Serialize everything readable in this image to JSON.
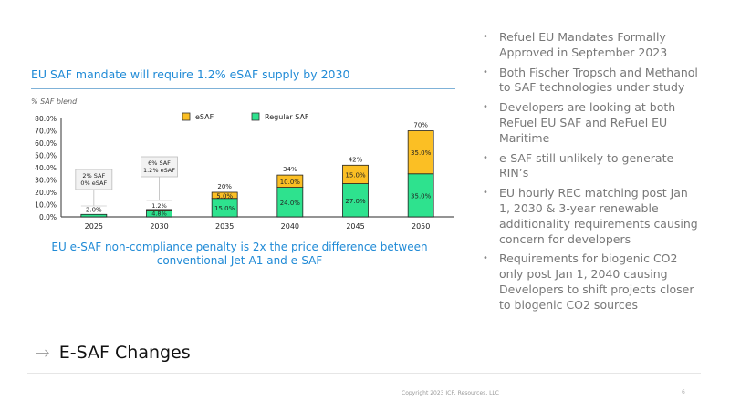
{
  "slide": {
    "chart_title": "EU SAF mandate will require 1.2% eSAF supply by 2030",
    "caption": "EU e-SAF non-compliance penalty is 2x the price difference between conventional Jet-A1 and e-SAF",
    "section_title": "E-SAF Changes",
    "section_icon": "arrow-right-icon",
    "copyright": "Copyright 2023 ICF, Resources, LLC",
    "page_number": "6"
  },
  "bullets": [
    "Refuel EU Mandates Formally Approved in September 2023",
    "Both Fischer Tropsch and Methanol to SAF technologies under study",
    "Developers are looking at both ReFuel EU SAF and ReFuel EU Maritime",
    "e-SAF still unlikely to generate RIN’s",
    "EU hourly REC matching post Jan 1, 2030 & 3-year renewable additionality requirements causing concern for developers",
    "Requirements for biogenic CO2 only post Jan 1, 2040 causing Developers to shift projects closer to biogenic CO2 sources"
  ],
  "chart_data": {
    "type": "bar",
    "stacked": true,
    "title": "EU SAF mandate will require 1.2% eSAF supply by 2030",
    "xlabel": "",
    "ylabel": "% SAF blend",
    "ylim": [
      0,
      80
    ],
    "yticks": [
      "0.0%",
      "10.0%",
      "20.0%",
      "30.0%",
      "40.0%",
      "50.0%",
      "60.0%",
      "70.0%",
      "80.0%"
    ],
    "ytick_values": [
      0,
      10,
      20,
      30,
      40,
      50,
      60,
      70,
      80
    ],
    "categories": [
      "2025",
      "2030",
      "2035",
      "2040",
      "2045",
      "2050"
    ],
    "series": [
      {
        "name": "Regular SAF",
        "color": "#2ee28e",
        "values": [
          2.0,
          4.8,
          15.0,
          24.0,
          27.0,
          35.0
        ],
        "labels": [
          "2.0%",
          "4.8%",
          "15.0%",
          "24.0%",
          "27.0%",
          "35.0%"
        ]
      },
      {
        "name": "eSAF",
        "color": "#fbbf24",
        "values": [
          0,
          1.2,
          5.0,
          10.0,
          15.0,
          35.0
        ],
        "labels": [
          "",
          "1.2%",
          "5.0%",
          "10.0%",
          "15.0%",
          "35.0%"
        ]
      }
    ],
    "totals": [
      "",
      "",
      "20%",
      "34%",
      "42%",
      "70%"
    ],
    "legend": [
      {
        "name": "eSAF",
        "color": "#fbbf24"
      },
      {
        "name": "Regular SAF",
        "color": "#2ee28e"
      }
    ],
    "legend_position": "top-center",
    "annotations": [
      {
        "category": "2025",
        "lines": [
          "2% SAF",
          "0% eSAF"
        ]
      },
      {
        "category": "2030",
        "lines": [
          "6% SAF",
          "1.2% eSAF"
        ]
      }
    ],
    "grid": false
  }
}
